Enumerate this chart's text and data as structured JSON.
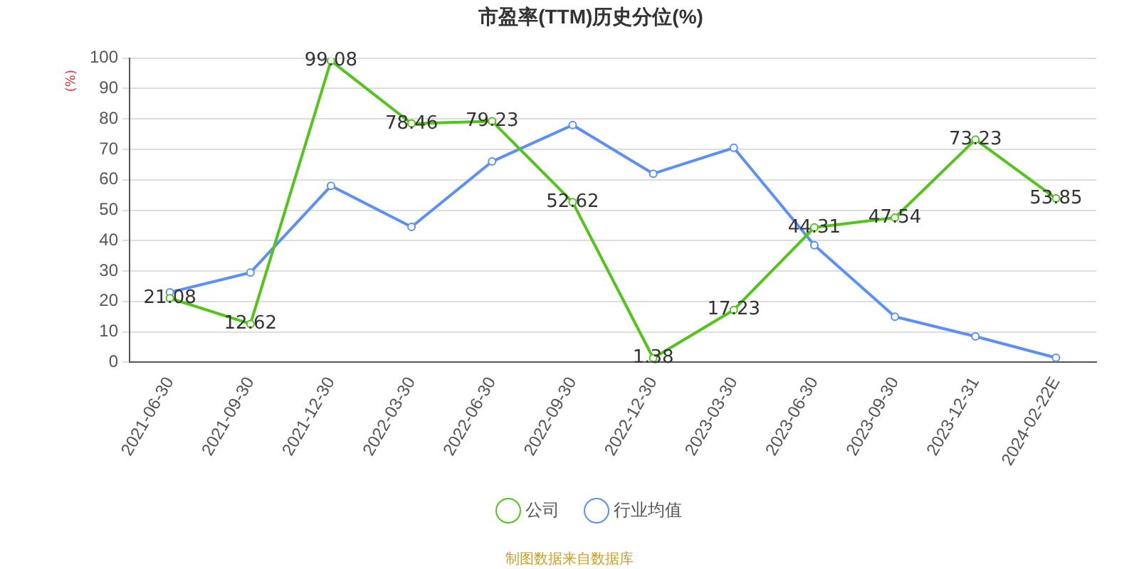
{
  "chart_data": {
    "type": "line",
    "title": "市盈率(TTM)历史分位(%)",
    "ylabel": "(%)",
    "categories": [
      "2021-06-30",
      "2021-09-30",
      "2021-12-30",
      "2022-03-30",
      "2022-06-30",
      "2022-09-30",
      "2022-12-30",
      "2023-03-30",
      "2023-06-30",
      "2023-09-30",
      "2023-12-31",
      "2024-02-22E"
    ],
    "series": [
      {
        "name": "公司",
        "color": "#52c41a",
        "values": [
          21.08,
          12.62,
          99.08,
          78.46,
          79.23,
          52.62,
          1.38,
          17.23,
          44.31,
          47.54,
          73.23,
          53.85
        ],
        "data_labels": true
      },
      {
        "name": "行业均值",
        "color": "#5b8ff9",
        "values": [
          23,
          29.5,
          58,
          44.5,
          66,
          78,
          62,
          70.5,
          38.5,
          15,
          8.5,
          1.5
        ]
      }
    ],
    "ylim": [
      0,
      100
    ],
    "yticks": [
      0,
      10,
      20,
      30,
      40,
      50,
      60,
      70,
      80,
      90,
      100
    ],
    "grid": "y",
    "legend": "bottom",
    "marker": "circle",
    "line_style": "solid",
    "annotations": [
      "制图数据来自数据库"
    ]
  }
}
